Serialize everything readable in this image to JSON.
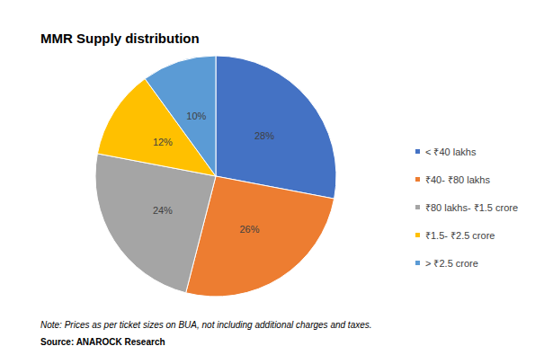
{
  "chart_data": {
    "type": "pie",
    "title": "MMR Supply distribution",
    "categories": [
      "< ₹40 lakhs",
      "₹40- ₹80 lakhs",
      "₹80 lakhs- ₹1.5 crore",
      "₹1.5- ₹2.5 crore",
      "> ₹2.5 crore"
    ],
    "values": [
      28,
      26,
      24,
      12,
      10
    ],
    "value_labels": [
      "28%",
      "26%",
      "24%",
      "12%",
      "10%"
    ],
    "colors": [
      "#4472c4",
      "#ed7d31",
      "#a5a5a5",
      "#ffc000",
      "#5b9bd5"
    ],
    "data_labels": true,
    "legend": "right",
    "note": "Note: Prices as per ticket sizes on BUA, not including additional charges and taxes.",
    "source": "Source: ANAROCK Research"
  }
}
